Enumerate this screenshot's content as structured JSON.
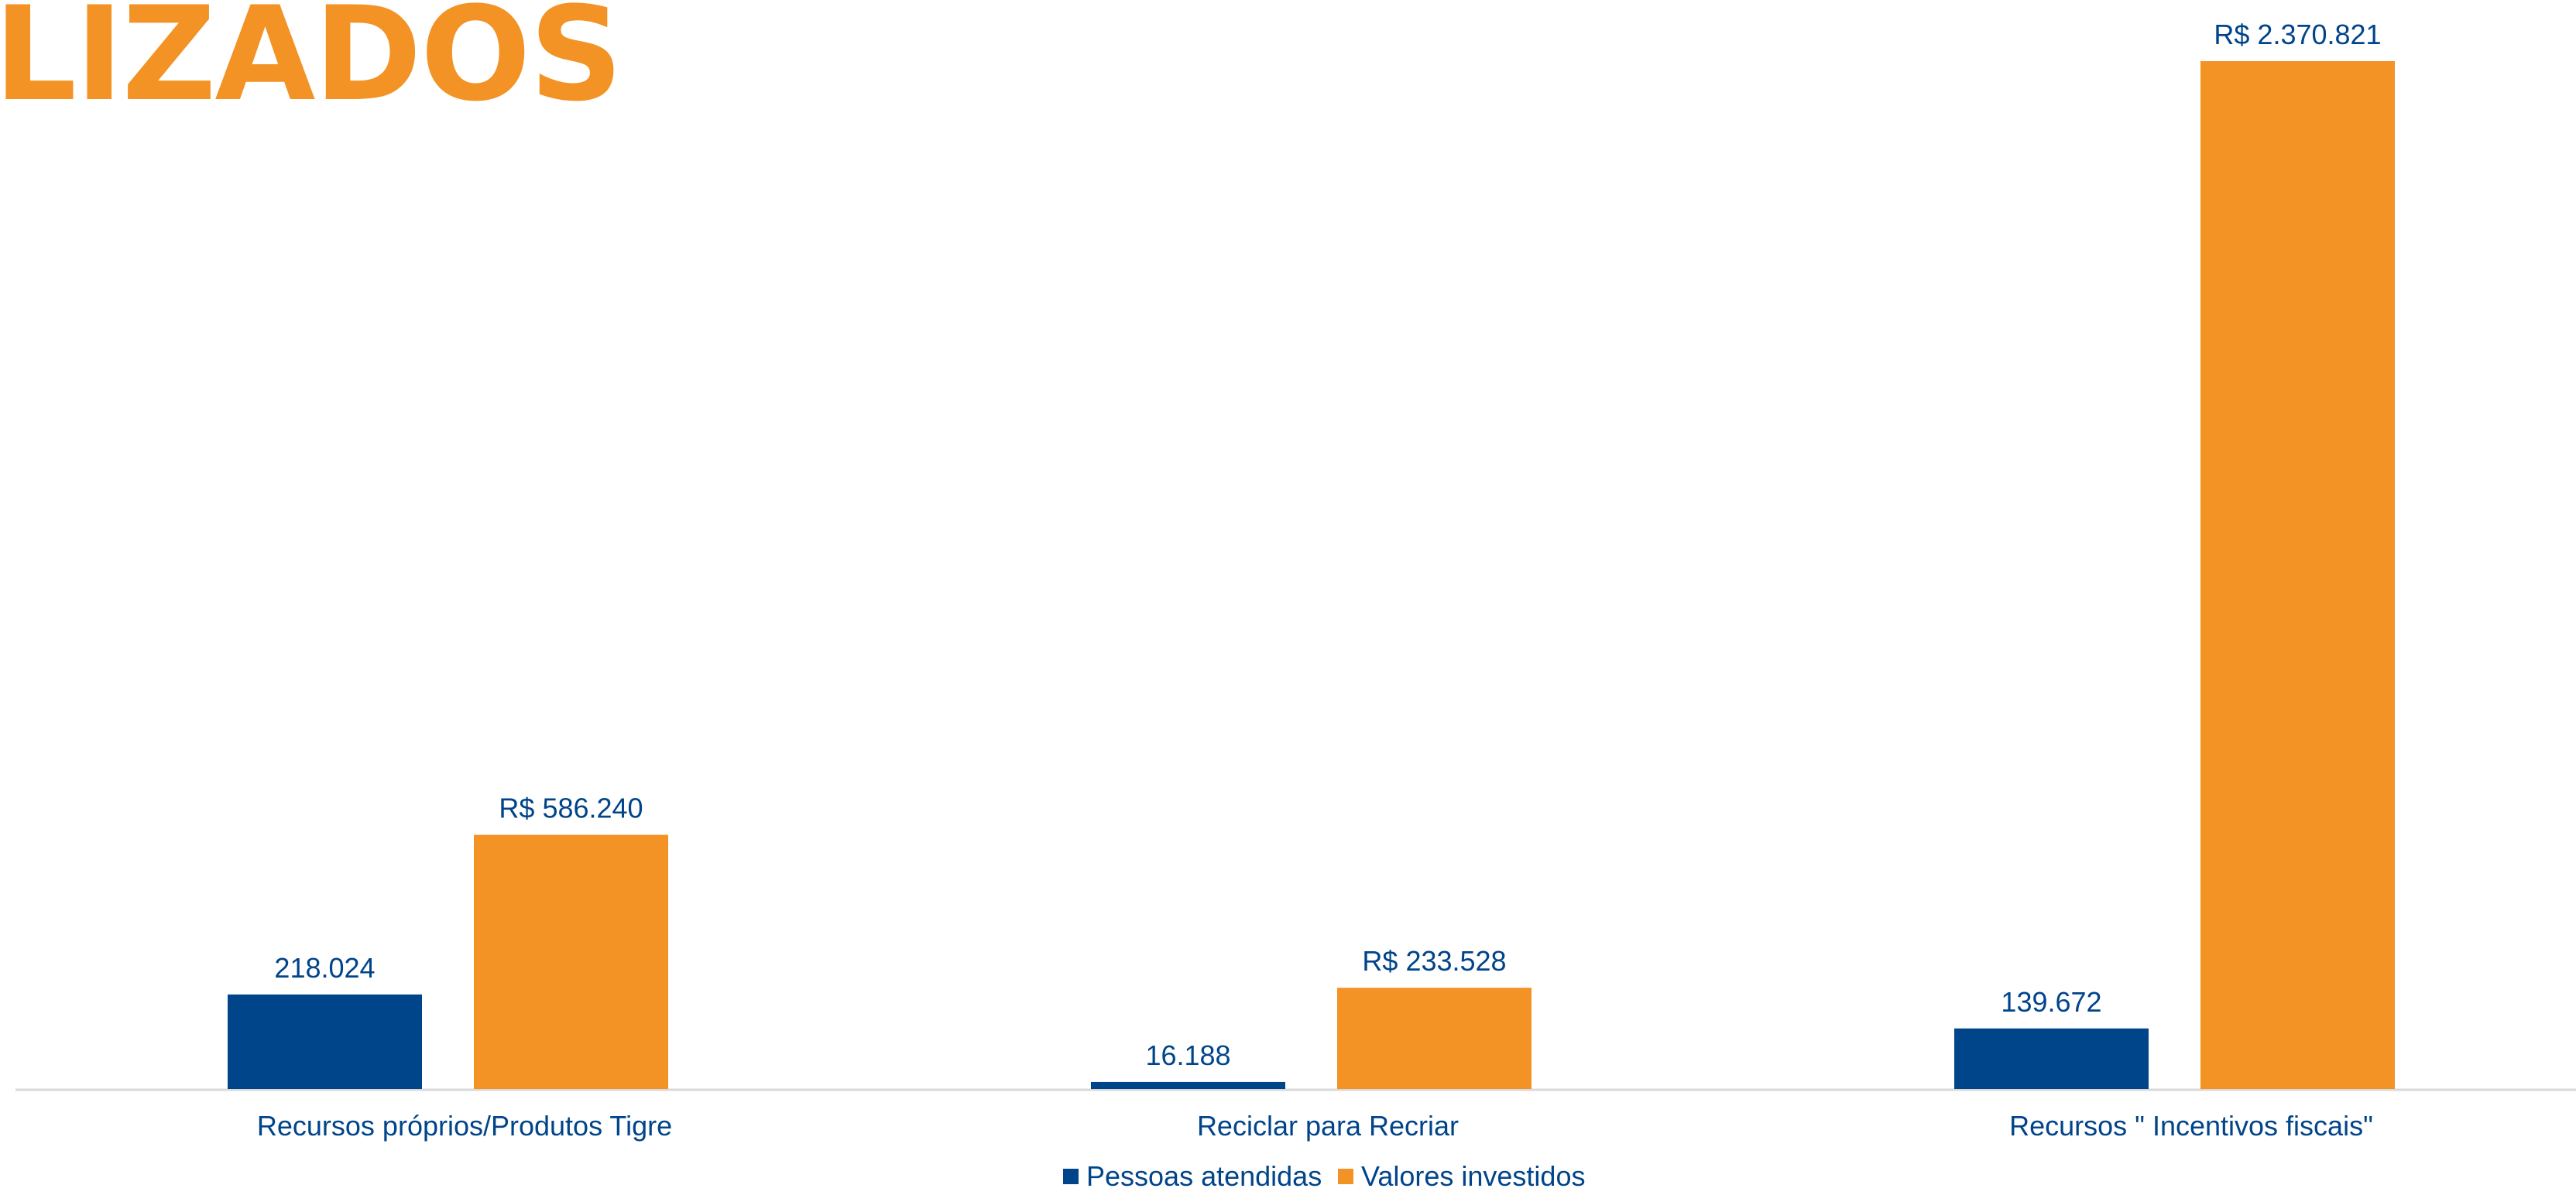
{
  "heading": "LIZADOS",
  "colors": {
    "people": "#00448a",
    "investment": "#f39325",
    "text": "#00448a",
    "axis": "#d9d9d9",
    "heading": "#f39325"
  },
  "chart_data": {
    "type": "bar",
    "categories": [
      "Recursos próprios/Produtos Tigre",
      "Reciclar para Recriar",
      "Recursos \" Incentivos fiscais\""
    ],
    "series": [
      {
        "name": "Pessoas atendidas",
        "values": [
          218024,
          16188,
          139672
        ],
        "labels": [
          "218.024",
          "16.188",
          "139.672"
        ],
        "scale_max": 2370821
      },
      {
        "name": "Valores investidos",
        "values": [
          586240,
          233528,
          2370821
        ],
        "labels": [
          "R$ 586.240",
          "R$ 233.528",
          "R$ 2.370.821"
        ]
      }
    ],
    "legend_position": "bottom",
    "grid": false,
    "ylim": [
      0,
      2370821
    ]
  }
}
